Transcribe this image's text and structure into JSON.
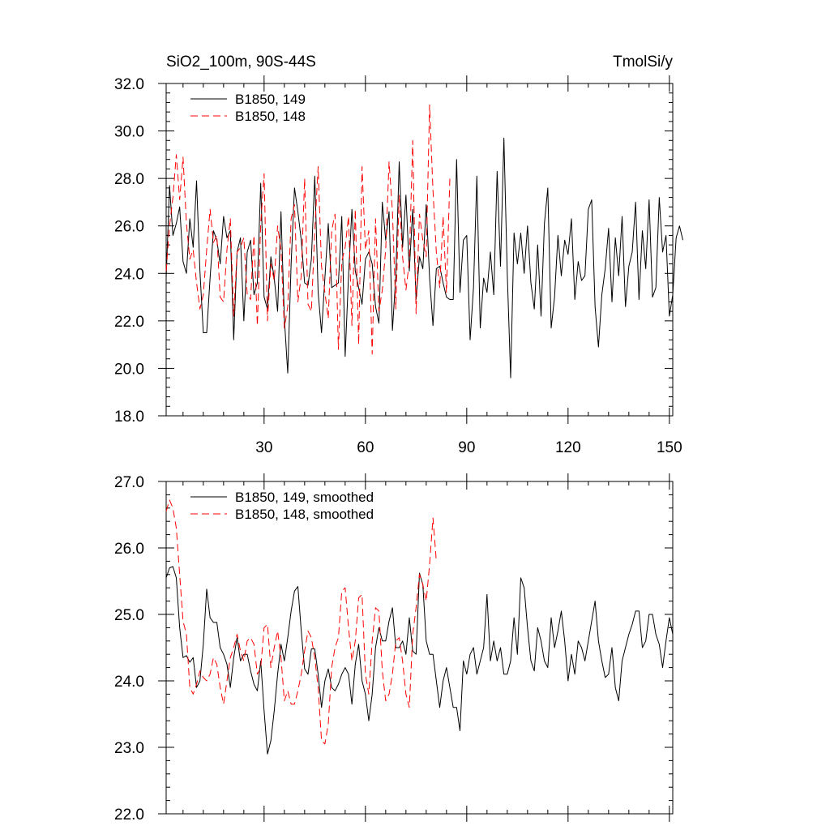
{
  "chart_data": [
    {
      "type": "line",
      "title": "SiO2_100m, 90S-44S",
      "units": "TmolSi/y",
      "xlabel": "",
      "ylabel": "",
      "xlim": [
        1,
        151
      ],
      "ylim": [
        18.0,
        32.0
      ],
      "x_ticks": [
        30,
        60,
        90,
        120,
        150
      ],
      "y_ticks": [
        "18.0",
        "20.0",
        "22.0",
        "24.0",
        "26.0",
        "28.0",
        "30.0",
        "32.0"
      ],
      "legend_position": "top-left",
      "series": [
        {
          "name": "B1850, 149",
          "color": "#000000",
          "dash": "solid",
          "x_start": 1,
          "values": [
            23.8,
            27.7,
            25.6,
            26.1,
            26.8,
            24.5,
            24.0,
            26.3,
            25.1,
            27.9,
            24.1,
            21.5,
            21.5,
            23.8,
            25.8,
            25.4,
            24.4,
            26.4,
            25.5,
            25.8,
            21.2,
            24.9,
            25.5,
            22.0,
            24.9,
            25.4,
            23.1,
            23.6,
            27.8,
            23.0,
            22.5,
            24.7,
            23.8,
            22.4,
            26.6,
            22.1,
            19.8,
            24.4,
            27.6,
            26.6,
            25.4,
            23.6,
            23.5,
            24.6,
            28.1,
            23.2,
            21.5,
            23.8,
            26.1,
            23.4,
            23.5,
            23.6,
            26.4,
            20.5,
            23.9,
            26.7,
            24.1,
            23.4,
            22.7,
            24.6,
            24.9,
            24.4,
            22.6,
            21.9,
            27.0,
            25.4,
            26.6,
            21.6,
            23.9,
            28.7,
            25.1,
            27.3,
            24.1,
            26.7,
            22.9,
            24.7,
            24.2,
            26.9,
            23.8,
            21.8,
            24.2,
            24.3,
            23.6,
            23.0,
            22.9,
            22.9,
            28.8,
            23.2,
            25.4,
            25.6,
            21.2,
            23.4,
            28.1,
            21.7,
            23.8,
            23.2,
            24.9,
            23.1,
            28.3,
            24.3,
            29.7,
            24.0,
            19.6,
            25.7,
            24.4,
            25.7,
            24.0,
            26.0,
            23.6,
            22.5,
            25.2,
            22.2,
            26.1,
            27.6,
            21.7,
            23.0,
            25.6,
            23.9,
            25.4,
            24.8,
            26.3,
            22.9,
            24.5,
            23.7,
            23.9,
            26.7,
            27.1,
            22.6,
            20.9,
            23.1,
            24.2,
            25.9,
            22.8,
            25.5,
            23.9,
            26.4,
            22.6,
            24.3,
            24.9,
            27.0,
            22.9,
            25.8,
            24.2,
            27.1,
            23.0,
            23.4,
            27.2,
            24.9,
            25.6,
            22.2,
            23.1,
            25.5,
            26.0,
            25.4
          ]
        },
        {
          "name": "B1850, 148",
          "color": "#ff0000",
          "dash": "dashed",
          "x_start": 1,
          "values": [
            24.1,
            26.0,
            27.2,
            29.0,
            27.1,
            28.9,
            26.1,
            24.6,
            25.0,
            23.6,
            22.5,
            23.1,
            25.0,
            26.7,
            25.3,
            25.6,
            23.0,
            22.8,
            25.0,
            26.3,
            22.2,
            24.9,
            25.1,
            25.5,
            23.1,
            22.9,
            25.6,
            21.8,
            26.1,
            28.2,
            22.0,
            24.4,
            23.7,
            26.0,
            25.0,
            21.7,
            22.6,
            26.3,
            26.9,
            22.8,
            23.9,
            28.0,
            22.7,
            22.4,
            25.8,
            28.5,
            24.3,
            23.2,
            22.1,
            25.8,
            26.5,
            20.8,
            24.5,
            25.1,
            26.4,
            21.8,
            26.7,
            21.0,
            28.5,
            25.0,
            25.8,
            20.6,
            26.3,
            22.4,
            23.3,
            25.0,
            28.7,
            26.6,
            22.5,
            27.3,
            24.7,
            23.3,
            24.5,
            29.6,
            22.3,
            26.5,
            25.4,
            24.7,
            31.1,
            27.5,
            24.9,
            23.4,
            26.4,
            23.2,
            28.0
          ]
        }
      ]
    },
    {
      "type": "line",
      "title": "",
      "xlabel": "",
      "ylabel": "",
      "xlim": [
        1,
        151
      ],
      "ylim": [
        22.0,
        27.0
      ],
      "x_ticks": [
        30,
        60,
        90,
        120,
        150
      ],
      "y_ticks": [
        "22.0",
        "23.0",
        "24.0",
        "25.0",
        "26.0",
        "27.0"
      ],
      "legend_position": "top-left",
      "series": [
        {
          "name": "B1850, 149, smoothed",
          "color": "#000000",
          "dash": "solid",
          "x_start": 1,
          "values": [
            25.55,
            25.7,
            25.72,
            25.55,
            24.8,
            24.35,
            24.38,
            24.28,
            24.35,
            23.9,
            24.0,
            24.55,
            25.38,
            24.95,
            24.88,
            24.88,
            24.5,
            24.4,
            24.25,
            23.9,
            24.35,
            24.65,
            24.3,
            24.4,
            24.4,
            24.15,
            23.95,
            23.85,
            24.3,
            23.55,
            22.9,
            23.1,
            23.55,
            24.1,
            24.55,
            24.3,
            24.65,
            25.05,
            25.35,
            25.42,
            24.75,
            24.18,
            24.1,
            24.48,
            24.48,
            24.1,
            23.6,
            24.0,
            24.18,
            23.9,
            23.85,
            23.95,
            24.1,
            24.2,
            24.1,
            23.65,
            24.25,
            24.55,
            24.0,
            23.8,
            23.4,
            23.8,
            24.5,
            24.8,
            24.6,
            24.6,
            24.9,
            25.1,
            24.5,
            24.5,
            24.6,
            24.4,
            24.95,
            24.45,
            24.4,
            25.62,
            25.45,
            24.6,
            24.4,
            24.4,
            24.0,
            23.6,
            24.0,
            24.2,
            23.9,
            23.6,
            23.6,
            23.25,
            24.3,
            24.1,
            24.4,
            24.5,
            24.1,
            24.3,
            24.5,
            25.3,
            24.3,
            24.6,
            24.3,
            24.5,
            24.1,
            24.1,
            24.3,
            24.95,
            24.4,
            25.55,
            25.4,
            24.8,
            24.3,
            24.15,
            24.8,
            24.6,
            24.3,
            24.2,
            24.95,
            24.5,
            24.75,
            25.05,
            24.6,
            24.0,
            24.4,
            24.1,
            24.6,
            24.5,
            24.3,
            24.6,
            24.9,
            25.2,
            24.6,
            24.3,
            24.05,
            24.1,
            24.5,
            23.9,
            23.7,
            24.3,
            24.5,
            24.7,
            24.85,
            25.05,
            25.05,
            24.5,
            24.6,
            25.0,
            25.0,
            24.7,
            24.55,
            24.2,
            24.6,
            24.95,
            24.7
          ]
        },
        {
          "name": "B1850, 148, smoothed",
          "color": "#ff0000",
          "dash": "dashed",
          "x_start": 1,
          "values": [
            26.55,
            26.72,
            26.6,
            26.3,
            25.6,
            24.9,
            24.7,
            23.9,
            23.8,
            23.95,
            24.15,
            24.05,
            24.0,
            24.1,
            24.35,
            24.25,
            23.9,
            23.65,
            24.0,
            24.35,
            24.5,
            24.7,
            24.45,
            24.3,
            24.6,
            24.65,
            24.55,
            24.1,
            24.2,
            24.8,
            24.85,
            24.2,
            24.5,
            24.75,
            24.35,
            23.7,
            23.85,
            23.65,
            23.65,
            23.85,
            24.1,
            24.45,
            24.75,
            24.65,
            24.35,
            23.9,
            23.1,
            23.05,
            23.35,
            24.2,
            24.5,
            24.65,
            25.35,
            25.4,
            24.8,
            24.3,
            24.6,
            25.25,
            25.3,
            24.1,
            23.8,
            24.6,
            25.1,
            25.05,
            24.15,
            23.7,
            23.8,
            24.1,
            24.6,
            24.65,
            24.3,
            23.8,
            23.6,
            24.7,
            25.1,
            25.6,
            25.45,
            25.2,
            25.75,
            26.45,
            25.8
          ]
        }
      ]
    }
  ]
}
